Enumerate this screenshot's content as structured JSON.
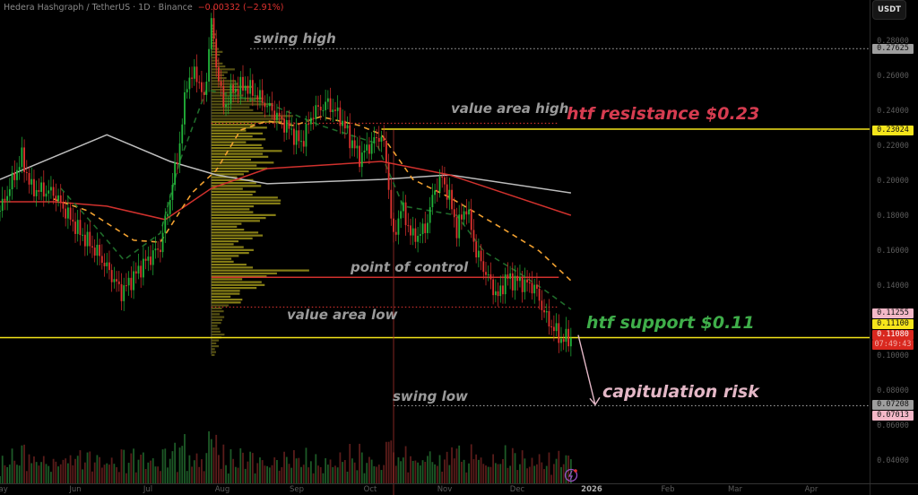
{
  "header": {
    "symbol": "Hedera Hashgraph / TetherUS · 1D · Binance",
    "change": "−0.00332 (−2.91%)"
  },
  "currency_button": "USDT",
  "annotations": {
    "swing_high": "swing high",
    "value_area_high": "value area high",
    "htf_resistance": "htf resistance $0.23",
    "point_of_control": "point of control",
    "value_area_low": "value area low",
    "htf_support": "htf support $0.11",
    "swing_low": "swing low",
    "capitulation_risk": "capitulation risk"
  },
  "price_tags": [
    {
      "label": "0.27625",
      "bg": "#9e9e9e",
      "fg": "#111"
    },
    {
      "label": "0.23024",
      "bg": "#f5e51b",
      "fg": "#111"
    },
    {
      "label": "0.11255",
      "bg": "#f4b8c8",
      "fg": "#111"
    },
    {
      "label": "0.11100",
      "bg": "#f5e51b",
      "fg": "#111"
    },
    {
      "label": "0.11080",
      "bg": "#d9281f",
      "fg": "#fff"
    },
    {
      "label": "07:49:43",
      "bg": "#d9281f",
      "fg": "#f2b0ab"
    },
    {
      "label": "0.07208",
      "bg": "#9e9e9e",
      "fg": "#111"
    },
    {
      "label": "0.07013",
      "bg": "#f4b8c8",
      "fg": "#111"
    }
  ],
  "colors": {
    "up": "#22b43a",
    "down": "#e0322f",
    "htf_resistance_text": "#d63c50",
    "htf_support_text": "#3fae4a",
    "capitulation_text": "#e3b7c6",
    "level_line": "#f5e51b",
    "ma_white": "#bdbdbd",
    "ma_red": "#d0312d",
    "ema_orange": "#f0a030",
    "ema_green": "#1f6b2a"
  },
  "chart_data": {
    "type": "candlestick",
    "title": "Hedera Hashgraph / TetherUS · 1D · Binance",
    "ylabel": "USDT",
    "ylim": [
      0.03,
      0.29
    ],
    "y_ticks": [
      "0.28000",
      "0.26000",
      "0.24000",
      "0.22000",
      "0.20000",
      "0.18000",
      "0.16000",
      "0.14000",
      "0.10000",
      "0.08000",
      "0.06000",
      "0.04000"
    ],
    "x_ticks": [
      "May",
      "Jun",
      "Jul",
      "Aug",
      "Sep",
      "Oct",
      "Nov",
      "Dec",
      "2026",
      "Feb",
      "Mar",
      "Apr"
    ],
    "close_path": [
      [
        "2025-05-01",
        0.1836
      ],
      [
        "2025-05-10",
        0.214
      ],
      [
        "2025-05-14",
        0.196
      ],
      [
        "2025-05-23",
        0.194
      ],
      [
        "2025-05-29",
        0.181
      ],
      [
        "2025-06-03",
        0.171
      ],
      [
        "2025-06-11",
        0.158
      ],
      [
        "2025-06-20",
        0.137
      ],
      [
        "2025-06-29",
        0.153
      ],
      [
        "2025-07-06",
        0.163
      ],
      [
        "2025-07-10",
        0.191
      ],
      [
        "2025-07-14",
        0.222
      ],
      [
        "2025-07-17",
        0.258
      ],
      [
        "2025-07-21",
        0.262
      ],
      [
        "2025-07-24",
        0.246
      ],
      [
        "2025-07-27",
        0.292
      ],
      [
        "2025-07-29",
        0.268
      ],
      [
        "2025-08-01",
        0.243
      ],
      [
        "2025-08-05",
        0.253
      ],
      [
        "2025-08-10",
        0.255
      ],
      [
        "2025-08-16",
        0.248
      ],
      [
        "2025-08-27",
        0.232
      ],
      [
        "2025-09-02",
        0.222
      ],
      [
        "2025-09-07",
        0.24
      ],
      [
        "2025-09-13",
        0.245
      ],
      [
        "2025-09-18",
        0.237
      ],
      [
        "2025-09-22",
        0.225
      ],
      [
        "2025-09-26",
        0.214
      ],
      [
        "2025-10-01",
        0.222
      ],
      [
        "2025-10-05",
        0.227
      ],
      [
        "2025-10-07",
        0.212
      ],
      [
        "2025-10-10",
        0.166
      ],
      [
        "2025-10-13",
        0.186
      ],
      [
        "2025-10-18",
        0.168
      ],
      [
        "2025-10-23",
        0.173
      ],
      [
        "2025-10-27",
        0.196
      ],
      [
        "2025-10-30",
        0.202
      ],
      [
        "2025-11-02",
        0.191
      ],
      [
        "2025-11-05",
        0.173
      ],
      [
        "2025-11-09",
        0.186
      ],
      [
        "2025-11-13",
        0.16
      ],
      [
        "2025-11-18",
        0.145
      ],
      [
        "2025-11-22",
        0.134
      ],
      [
        "2025-11-25",
        0.145
      ],
      [
        "2025-12-01",
        0.143
      ],
      [
        "2025-12-07",
        0.14
      ],
      [
        "2025-12-12",
        0.122
      ],
      [
        "2025-12-18",
        0.11
      ],
      [
        "2025-12-22",
        0.1108
      ]
    ],
    "indicators": [
      {
        "style": "solid",
        "color": "#bdbdbd",
        "points": [
          [
            "2025-05-01",
            0.2015
          ],
          [
            "2025-06-14",
            0.227
          ],
          [
            "2025-07-10",
            0.2118
          ],
          [
            "2025-07-29",
            0.2041
          ],
          [
            "2025-08-19",
            0.199
          ],
          [
            "2025-10-05",
            0.2015
          ],
          [
            "2025-11-02",
            0.2041
          ],
          [
            "2025-12-22",
            0.1938
          ]
        ]
      },
      {
        "style": "solid",
        "color": "#d0312d",
        "points": [
          [
            "2025-05-01",
            0.1887
          ],
          [
            "2025-05-23",
            0.1887
          ],
          [
            "2025-06-14",
            0.1862
          ],
          [
            "2025-07-08",
            0.1785
          ],
          [
            "2025-07-27",
            0.1964
          ],
          [
            "2025-08-19",
            0.2077
          ],
          [
            "2025-10-05",
            0.2118
          ],
          [
            "2025-11-02",
            0.2041
          ],
          [
            "2025-12-22",
            0.181
          ]
        ]
      },
      {
        "style": "dashed",
        "color": "#f0a030",
        "points": [
          [
            "2025-05-23",
            0.1903
          ],
          [
            "2025-06-06",
            0.1836
          ],
          [
            "2025-06-25",
            0.1667
          ],
          [
            "2025-07-06",
            0.1656
          ],
          [
            "2025-07-19",
            0.1938
          ],
          [
            "2025-07-29",
            0.2067
          ],
          [
            "2025-08-08",
            0.2297
          ],
          [
            "2025-08-19",
            0.2349
          ],
          [
            "2025-08-30",
            0.2323
          ],
          [
            "2025-09-10",
            0.2374
          ],
          [
            "2025-09-26",
            0.2323
          ],
          [
            "2025-10-05",
            0.2272
          ],
          [
            "2025-10-18",
            0.2015
          ],
          [
            "2025-11-02",
            0.1913
          ],
          [
            "2025-11-24",
            0.1733
          ],
          [
            "2025-12-09",
            0.1605
          ],
          [
            "2025-12-22",
            0.1436
          ]
        ]
      },
      {
        "style": "dashed",
        "color": "#1f6b2a",
        "points": [
          [
            "2025-05-26",
            0.1964
          ],
          [
            "2025-06-10",
            0.1733
          ],
          [
            "2025-06-21",
            0.1554
          ],
          [
            "2025-07-06",
            0.1708
          ],
          [
            "2025-07-14",
            0.2118
          ],
          [
            "2025-07-25",
            0.2528
          ],
          [
            "2025-08-19",
            0.2451
          ],
          [
            "2025-09-10",
            0.2323
          ],
          [
            "2025-10-03",
            0.2221
          ],
          [
            "2025-10-14",
            0.1862
          ],
          [
            "2025-10-25",
            0.1836
          ],
          [
            "2025-11-05",
            0.181
          ],
          [
            "2025-11-16",
            0.1605
          ],
          [
            "2025-12-01",
            0.1477
          ],
          [
            "2025-12-12",
            0.1374
          ],
          [
            "2025-12-22",
            0.1272
          ]
        ]
      }
    ],
    "volume_profile": {
      "start": "2025-07-27",
      "bin_size": 0.005,
      "bins_from": 0.1,
      "volumes": [
        5,
        10,
        14,
        12,
        14,
        20,
        35,
        50,
        60,
        105,
        45,
        40,
        45,
        55,
        50,
        60,
        70,
        80,
        75,
        55,
        50,
        60,
        80,
        75,
        70,
        55,
        85,
        90,
        70,
        60,
        45,
        30,
        25,
        15,
        12,
        8,
        5,
        3
      ],
      "value_area_high": 0.2336,
      "point_of_control": 0.1455,
      "value_area_low": 0.1285
    },
    "levels": [
      {
        "name": "swing high",
        "price": 0.27625,
        "from": "2025-08-12",
        "style": "dotted",
        "color": "#9e9e9e"
      },
      {
        "name": "value area high",
        "price": 0.2336,
        "from": "2025-07-27",
        "to": "2025-12-17",
        "style": "dotted",
        "color": "#d0312d"
      },
      {
        "name": "htf resistance",
        "price": 0.23024,
        "from": "2025-10-05",
        "style": "solid",
        "color": "#f5e51b"
      },
      {
        "name": "point of control",
        "price": 0.1455,
        "from": "2025-07-27",
        "to": "2025-12-17",
        "style": "solid",
        "color": "#d0312d"
      },
      {
        "name": "value area low",
        "price": 0.1285,
        "from": "2025-07-27",
        "to": "2025-12-17",
        "style": "dotted",
        "color": "#d0312d"
      },
      {
        "name": "htf support",
        "price": 0.111,
        "from": "2025-05-01",
        "style": "solid",
        "color": "#f5e51b"
      },
      {
        "name": "swing low",
        "price": 0.07208,
        "from": "2025-10-10",
        "style": "dotted",
        "color": "#9e9e9e"
      }
    ],
    "projection_arrow": {
      "from": [
        "2025-12-25",
        0.1125
      ],
      "to": [
        "2026-01-01",
        0.0701
      ]
    }
  }
}
